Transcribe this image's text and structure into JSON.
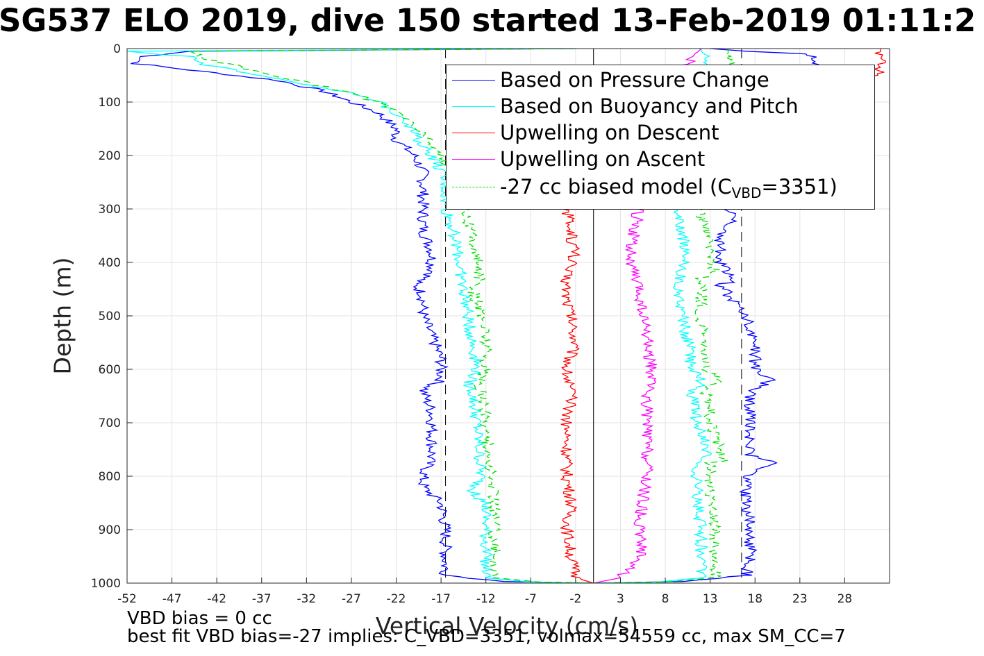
{
  "title": "SG537 ELO 2019, dive 150 started 13-Feb-2019 01:11:2",
  "notes": {
    "line1": "VBD bias = 0 cc",
    "line2": "best fit VBD bias=-27 implies: C_VBD=3351, volmax=54559 cc, max SM_CC=7"
  },
  "legend": {
    "items": [
      {
        "label": "Based on Pressure Change",
        "color": "#0000ff",
        "dash": false
      },
      {
        "label": "Based on Buoyancy and Pitch",
        "color": "#00ffff",
        "dash": false
      },
      {
        "label": "Upwelling on Descent",
        "color": "#ff0000",
        "dash": false
      },
      {
        "label": "Upwelling on Ascent",
        "color": "#ff00ff",
        "dash": false
      }
    ],
    "model_prefix": "-27 cc biased model (C",
    "model_sub": "VBD",
    "model_suffix": "=3351)",
    "model_color": "#00dd00"
  },
  "chart_data": {
    "type": "line",
    "title": "SG537 ELO 2019, dive 150 started 13-Feb-2019 01:11:2",
    "xlabel": "Vertical Velocity (cm/s)",
    "ylabel": "Depth (m)",
    "xlim": [
      -52,
      33
    ],
    "ylim": [
      0,
      1000
    ],
    "y_reversed": true,
    "grid": true,
    "legend_position": "top-right",
    "xticks": [
      -52,
      -47,
      -42,
      -37,
      -32,
      -27,
      -22,
      -17,
      -12,
      -7,
      -2,
      3,
      8,
      13,
      18,
      23,
      28
    ],
    "yticks": [
      0,
      100,
      200,
      300,
      400,
      500,
      600,
      700,
      800,
      900,
      1000
    ],
    "reference_lines": {
      "vertical_solid": [
        0
      ],
      "vertical_dashed": [
        -16.5,
        16.5
      ]
    },
    "series": [
      {
        "name": "Based on Pressure Change",
        "branch": "descent",
        "color": "#0000ff",
        "depth": [
          0,
          5,
          15,
          28,
          40,
          60,
          80,
          100,
          120,
          150,
          170,
          200,
          230,
          260,
          300,
          340,
          380,
          420,
          440,
          460,
          500,
          540,
          580,
          620,
          640,
          680,
          720,
          760,
          800,
          820,
          850,
          900,
          950,
          985,
          997,
          1000
        ],
        "values": [
          -2,
          -45,
          -50,
          -51,
          -45,
          -35,
          -30,
          -27,
          -24,
          -22,
          -22,
          -20,
          -19,
          -19,
          -19,
          -19,
          -18,
          -18,
          -20,
          -19,
          -19,
          -18,
          -17,
          -17,
          -19,
          -18,
          -18,
          -18,
          -19,
          -19,
          -17,
          -16.5,
          -16.5,
          -16.5,
          -10,
          0
        ]
      },
      {
        "name": "Based on Pressure Change",
        "branch": "ascent",
        "color": "#0000ff",
        "depth": [
          1000,
          997,
          985,
          950,
          900,
          850,
          800,
          775,
          760,
          700,
          640,
          620,
          600,
          560,
          520,
          480,
          440,
          435,
          400,
          350,
          320,
          300,
          200,
          120,
          60,
          30,
          10,
          5,
          0
        ],
        "values": [
          0,
          10,
          17,
          17.5,
          17.5,
          17,
          17,
          20,
          17.5,
          17.5,
          17.5,
          20,
          18,
          18,
          17.5,
          16,
          14,
          16,
          14,
          14,
          16,
          15,
          15,
          15,
          15,
          25,
          24,
          17,
          13
        ]
      },
      {
        "name": "Based on Buoyancy and Pitch",
        "branch": "descent",
        "color": "#00ffff",
        "depth": [
          0,
          5,
          15,
          30,
          40,
          60,
          80,
          100,
          130,
          160,
          200,
          230,
          260,
          300,
          320,
          350,
          400,
          450,
          500,
          550,
          600,
          630,
          640,
          700,
          800,
          830,
          850,
          900,
          950,
          990,
          998,
          1000
        ],
        "values": [
          -2,
          -52,
          -45,
          -44,
          -40,
          -34,
          -28,
          -24,
          -21,
          -20,
          -18,
          -17,
          -16.5,
          -16.5,
          -16,
          -15.5,
          -15,
          -14.5,
          -14,
          -13.5,
          -13,
          -14,
          -13.5,
          -13,
          -12.5,
          -13.5,
          -12,
          -12,
          -12,
          -12,
          -7,
          0
        ]
      },
      {
        "name": "Based on Buoyancy and Pitch",
        "branch": "ascent",
        "color": "#00ffff",
        "depth": [
          1000,
          998,
          990,
          950,
          900,
          850,
          800,
          770,
          760,
          700,
          640,
          630,
          600,
          550,
          500,
          450,
          400,
          350,
          300,
          200,
          120,
          60,
          20,
          5,
          0
        ],
        "values": [
          0,
          7,
          12,
          12,
          12,
          11.5,
          11.5,
          11.5,
          13,
          11.5,
          11,
          12.5,
          11,
          10.5,
          10,
          9.5,
          10,
          10,
          9.5,
          9.5,
          9.5,
          9.5,
          13,
          12,
          12
        ]
      },
      {
        "name": "Upwelling on Descent",
        "branch": "descent",
        "color": "#ff0000",
        "depth": [
          0,
          50,
          100,
          200,
          300,
          350,
          380,
          420,
          460,
          500,
          550,
          600,
          650,
          700,
          750,
          800,
          850,
          900,
          950,
          990,
          1000
        ],
        "values": [
          32,
          32,
          3,
          3,
          -3,
          -2.5,
          -2,
          -3,
          -3,
          -2.5,
          -2,
          -3,
          -2.5,
          -3,
          -3,
          -3,
          -2.5,
          -3,
          -2.5,
          -2,
          0
        ]
      },
      {
        "name": "Upwelling on Ascent",
        "branch": "ascent",
        "color": "#ff00ff",
        "depth": [
          0,
          50,
          100,
          200,
          300,
          350,
          400,
          450,
          500,
          550,
          600,
          650,
          700,
          750,
          800,
          850,
          900,
          950,
          990,
          1000
        ],
        "values": [
          12,
          9,
          6,
          6,
          5,
          4.5,
          4,
          5,
          5.5,
          6,
          6.5,
          6,
          6,
          6,
          6,
          5.5,
          5,
          5.5,
          3,
          0
        ]
      },
      {
        "name": "-27 cc biased model (C_VBD=3351)",
        "branch": "descent",
        "color": "#00dd00",
        "dashed": true,
        "depth": [
          0,
          5,
          20,
          40,
          60,
          80,
          100,
          130,
          160,
          200,
          230,
          260,
          300,
          320,
          400,
          440,
          450,
          500,
          530,
          600,
          630,
          640,
          700,
          800,
          850,
          900,
          950,
          990,
          998,
          1000
        ],
        "values": [
          -2,
          -45,
          -43,
          -38,
          -33,
          -28,
          -24,
          -21,
          -19,
          -17,
          -16,
          -15,
          -14,
          -14,
          -13,
          -12.5,
          -13.5,
          -12.5,
          -12,
          -12,
          -13,
          -12.5,
          -12,
          -11.5,
          -11,
          -11,
          -11,
          -11,
          -6,
          0
        ]
      },
      {
        "name": "-27 cc biased model (C_VBD=3351)",
        "branch": "ascent",
        "color": "#00dd00",
        "dashed": true,
        "depth": [
          1000,
          998,
          990,
          950,
          900,
          850,
          800,
          775,
          770,
          700,
          630,
          620,
          600,
          500,
          430,
          420,
          300,
          200,
          100,
          30,
          5,
          0
        ],
        "values": [
          0,
          8,
          13.5,
          13.5,
          13.5,
          13,
          13,
          13,
          14.5,
          13,
          12.5,
          14.5,
          12.5,
          12,
          12,
          13.5,
          12,
          12,
          12,
          15,
          15,
          15
        ]
      }
    ]
  }
}
